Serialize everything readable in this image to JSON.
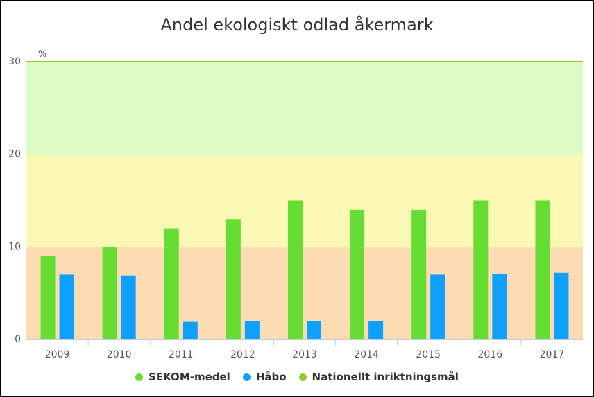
{
  "chart_data": {
    "type": "bar",
    "title": "Andel ekologiskt odlad åkermark",
    "ylabel": "%",
    "ylim": [
      0,
      30
    ],
    "yticks": [
      0,
      10,
      20,
      30
    ],
    "categories": [
      "2009",
      "2010",
      "2011",
      "2012",
      "2013",
      "2014",
      "2015",
      "2016",
      "2017"
    ],
    "series": [
      {
        "name": "SEKOM-medel",
        "color": "#66dd33",
        "values": [
          9,
          10,
          12,
          13,
          15,
          14,
          14,
          15,
          15
        ]
      },
      {
        "name": "Håbo",
        "color": "#0ea0ff",
        "values": [
          7,
          6.9,
          1.9,
          2,
          2,
          2,
          7,
          7.1,
          7.2
        ]
      }
    ],
    "target_line": {
      "name": "Nationellt inriktningsmål",
      "value": 30,
      "color": "#8ccc2e"
    },
    "bands": [
      {
        "from": 0,
        "to": 10,
        "color": "#fddcb3"
      },
      {
        "from": 10,
        "to": 20,
        "color": "#f9f9b5"
      },
      {
        "from": 20,
        "to": 30,
        "color": "#dcfcc3"
      }
    ],
    "legend_position": "bottom",
    "grid": false
  }
}
